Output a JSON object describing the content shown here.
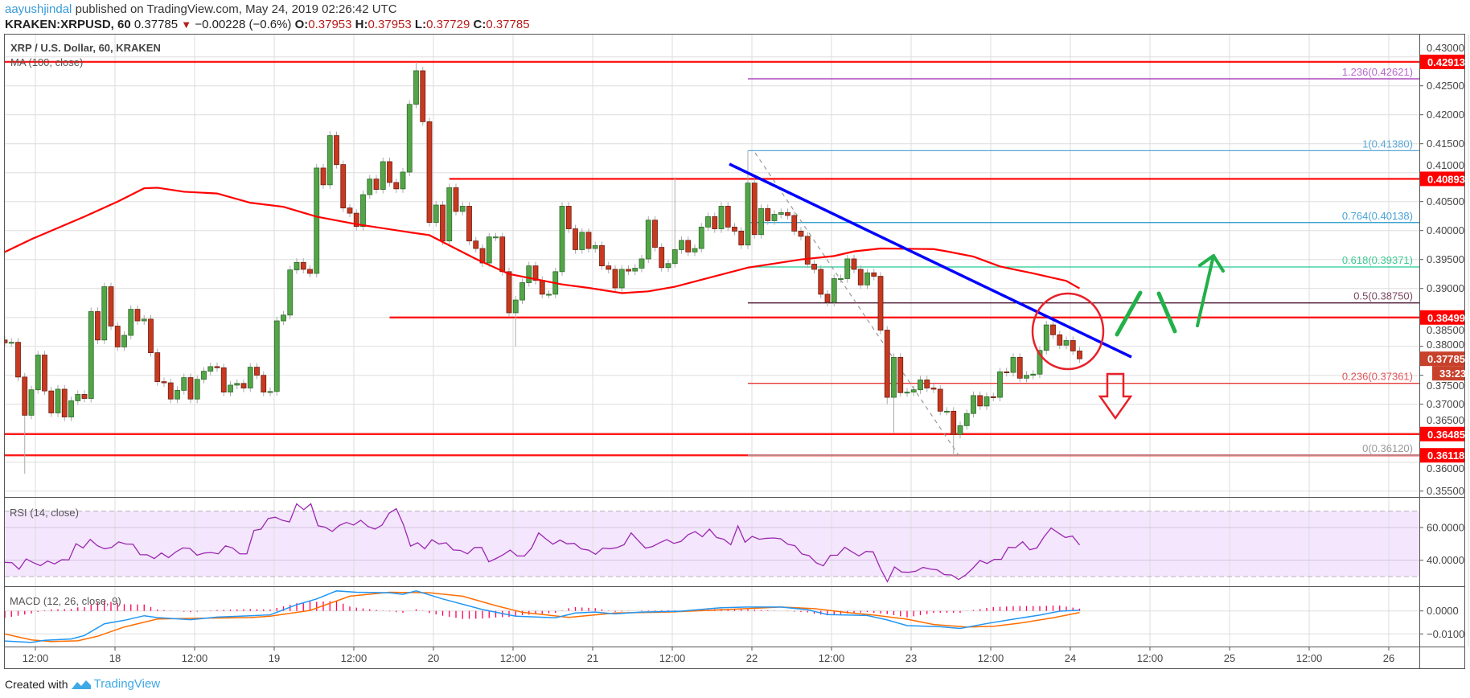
{
  "header": {
    "author": "aayushjindal",
    "published": " published on TradingView.com, May 24, 2019 02:26:42 UTC",
    "symbol": "KRAKEN:XRPUSD, 60",
    "last": "0.37785",
    "change": "−0.00228 (−0.6%)",
    "o_label": "O:",
    "o": "0.37953",
    "h_label": "H:",
    "h": "0.37953",
    "l_label": "L:",
    "l": "0.37729",
    "c_label": "C:",
    "c": "0.37785",
    "direction_icon": "triangle-down-icon"
  },
  "legend": {
    "title": "XRP / U.S. Dollar, 60, KRAKEN",
    "ma": "MA (100, close)",
    "rsi": "RSI (14, close)",
    "macd": "MACD (12, 26, close, 9)"
  },
  "footer": {
    "created_with": "Created with",
    "brand": "TradingView"
  },
  "colors": {
    "up": "#53a548",
    "down": "#c8391f",
    "ma": "#ff0000",
    "level": "#ff0000",
    "trendline": "#0000ff",
    "rsi": "#9c27b0",
    "rsi_band": "#f3e6fd",
    "macd": "#2196f3",
    "signal": "#ff6d00",
    "histogram": "#ff0055",
    "current_tag": "#c8412b"
  },
  "axis": {
    "price_ticks": [
      "0.35500",
      "0.36000",
      "0.36500",
      "0.37000",
      "0.37500",
      "0.38000",
      "0.38500",
      "0.39000",
      "0.39500",
      "0.40000",
      "0.40500",
      "0.41000",
      "0.41500",
      "0.42000",
      "0.42500",
      "0.43000"
    ],
    "rsi_ticks": [
      "40.0000",
      "60.0000"
    ],
    "macd_ticks": [
      "0.0000",
      "−0.0100"
    ],
    "time_labels": [
      "12:00",
      "18",
      "12:00",
      "19",
      "12:00",
      "20",
      "12:00",
      "21",
      "12:00",
      "22",
      "12:00",
      "23",
      "12:00",
      "24",
      "12:00",
      "25",
      "12:00",
      "26"
    ],
    "current_price": "0.37785",
    "countdown": "33:23"
  },
  "levels": [
    {
      "price": 0.42913,
      "label": "0.42913",
      "from": "start"
    },
    {
      "price": 0.40893,
      "label": "0.40893",
      "from": "2019-05-20 03:00"
    },
    {
      "price": 0.38499,
      "label": "0.38499",
      "from": "2019-05-19 18:00"
    },
    {
      "price": 0.36485,
      "label": "0.36485",
      "from": "start"
    },
    {
      "price": 0.36118,
      "label": "0.36118",
      "from": "start"
    }
  ],
  "fib": {
    "from": "2019-05-22 00:00",
    "levels": [
      {
        "label": "1.236(0.42621)",
        "price": 0.42621,
        "color": "#9c27b0",
        "text_color": "#b865d0"
      },
      {
        "label": "1(0.41380)",
        "price": 0.4138,
        "color": "#5aa7d8",
        "text_color": "#5aa7d8"
      },
      {
        "label": "0.764(0.40138)",
        "price": 0.40138,
        "color": "#2196c8",
        "text_color": "#4aa3d8"
      },
      {
        "label": "0.618(0.39371)",
        "price": 0.39371,
        "color": "#20c997",
        "text_color": "#3cc98f"
      },
      {
        "label": "0.5(0.38750)",
        "price": 0.3875,
        "color": "#4a1530",
        "text_color": "#7a4a60"
      },
      {
        "label": "0.236(0.37361)",
        "price": 0.37361,
        "color": "#e53935",
        "text_color": "#e0555a"
      },
      {
        "label": "0(0.36120)",
        "price": 0.3612,
        "color": "#aaaaaa",
        "text_color": "#999999"
      }
    ]
  },
  "chart_data": {
    "type": "candlestick",
    "interval": "60",
    "price_range": [
      0.352,
      0.4326
    ],
    "grid": true,
    "days": [
      {
        "date": "2019-05-17",
        "first_hour": "08:00",
        "open": 0.3811,
        "closes": [
          0.3806,
          0.3807,
          0.3747,
          0.3681,
          0.3725,
          0.3785,
          0.3723,
          0.3685,
          0.3726,
          0.3678,
          0.3706,
          0.3717,
          0.371,
          0.386,
          0.3811,
          0.3903
        ]
      },
      {
        "date": "2019-05-18",
        "first_hour": "00:00",
        "closes": [
          0.3835,
          0.3799,
          0.3819,
          0.3864,
          0.3844,
          0.3847,
          0.3789,
          0.3739,
          0.3737,
          0.3709,
          0.3724,
          0.3746,
          0.3709,
          0.3743,
          0.3757,
          0.3765,
          0.3763,
          0.3721,
          0.3733,
          0.3736,
          0.3728,
          0.3764,
          0.375,
          0.3721
        ]
      },
      {
        "date": "2019-05-19",
        "first_hour": "00:00",
        "closes": [
          0.3722,
          0.3844,
          0.3854,
          0.3932,
          0.3945,
          0.3933,
          0.3926,
          0.4108,
          0.4079,
          0.4164,
          0.4114,
          0.4039,
          0.403,
          0.4007,
          0.4062,
          0.4089,
          0.4071,
          0.4119,
          0.4083,
          0.4072,
          0.4101,
          0.4218,
          0.4276,
          0.4188
        ]
      },
      {
        "date": "2019-05-20",
        "first_hour": "00:00",
        "closes": [
          0.4014,
          0.4044,
          0.3982,
          0.4074,
          0.4033,
          0.4042,
          0.3982,
          0.3969,
          0.3944,
          0.3989,
          0.3989,
          0.3929,
          0.3858,
          0.388,
          0.391,
          0.3939,
          0.3914,
          0.389,
          0.389,
          0.3929,
          0.4042,
          0.4003,
          0.3967,
          0.3997
        ]
      },
      {
        "date": "2019-05-21",
        "first_hour": "00:00",
        "closes": [
          0.3969,
          0.3974,
          0.3939,
          0.3933,
          0.3901,
          0.3933,
          0.393,
          0.3935,
          0.3951,
          0.4018,
          0.3971,
          0.3936,
          0.3943,
          0.3967,
          0.3983,
          0.3963,
          0.3969,
          0.4006,
          0.4024,
          0.4003,
          0.4042,
          0.4006,
          0.3999,
          0.3975
        ]
      },
      {
        "date": "2019-05-22",
        "first_hour": "00:00",
        "closes": [
          0.4082,
          0.3993,
          0.4038,
          0.4017,
          0.4028,
          0.4031,
          0.4026,
          0.3999,
          0.399,
          0.3942,
          0.3933,
          0.389,
          0.3876,
          0.3917,
          0.3917,
          0.3951,
          0.3933,
          0.3906,
          0.3927,
          0.3921,
          0.3828,
          0.3712,
          0.3781,
          0.372
        ]
      },
      {
        "date": "2019-05-23",
        "first_hour": "00:00",
        "closes": [
          0.3721,
          0.3725,
          0.3742,
          0.3728,
          0.3726,
          0.3688,
          0.3688,
          0.3648,
          0.3663,
          0.3684,
          0.3715,
          0.3697,
          0.3713,
          0.3712,
          0.3756,
          0.3755,
          0.3781,
          0.3745,
          0.375,
          0.3752,
          0.3793,
          0.3837,
          0.382,
          0.3802
        ]
      },
      {
        "date": "2019-05-24",
        "first_hour": "00:00",
        "closes": [
          0.381,
          0.3792,
          0.37785
        ]
      }
    ],
    "notable_wicks": [
      {
        "time": "2019-05-17 11:00",
        "low": 0.358
      },
      {
        "time": "2019-05-19 09:00",
        "high": 0.4172
      },
      {
        "time": "2019-05-19 22:00",
        "high": 0.4291
      },
      {
        "time": "2019-05-20 13:00",
        "low": 0.38
      },
      {
        "time": "2019-05-21 13:00",
        "high": 0.4092
      },
      {
        "time": "2019-05-22 00:00",
        "high": 0.4138
      },
      {
        "time": "2019-05-22 21:00",
        "low": 0.37
      },
      {
        "time": "2019-05-22 22:00",
        "low": 0.3651
      },
      {
        "time": "2019-05-23 07:00",
        "low": 0.3612
      }
    ],
    "ma100": [
      [
        "2019-05-17 08:00",
        0.3963
      ],
      [
        "2019-05-17 12:00",
        0.3985
      ],
      [
        "2019-05-17 20:00",
        0.4024
      ],
      [
        "2019-05-18 01:00",
        0.405
      ],
      [
        "2019-05-18 05:00",
        0.4073
      ],
      [
        "2019-05-18 07:00",
        0.4074
      ],
      [
        "2019-05-18 11:00",
        0.4067
      ],
      [
        "2019-05-18 16:00",
        0.4064
      ],
      [
        "2019-05-18 21:00",
        0.4048
      ],
      [
        "2019-05-19 02:00",
        0.4041
      ],
      [
        "2019-05-19 07:00",
        0.4024
      ],
      [
        "2019-05-19 13:00",
        0.4011
      ],
      [
        "2019-05-19 21:00",
        0.3997
      ],
      [
        "2019-05-20 00:00",
        0.3992
      ],
      [
        "2019-05-20 07:00",
        0.3951
      ],
      [
        "2019-05-20 12:00",
        0.3925
      ],
      [
        "2019-05-20 20:00",
        0.3907
      ],
      [
        "2019-05-21 00:00",
        0.3901
      ],
      [
        "2019-05-21 05:00",
        0.3892
      ],
      [
        "2019-05-21 09:00",
        0.3895
      ],
      [
        "2019-05-21 13:00",
        0.3903
      ],
      [
        "2019-05-21 19:00",
        0.3921
      ],
      [
        "2019-05-22 00:00",
        0.3936
      ],
      [
        "2019-05-22 08:00",
        0.395
      ],
      [
        "2019-05-22 13:00",
        0.3956
      ],
      [
        "2019-05-22 16:00",
        0.3964
      ],
      [
        "2019-05-22 20:00",
        0.3969
      ],
      [
        "2019-05-23 04:00",
        0.3968
      ],
      [
        "2019-05-23 06:00",
        0.3964
      ],
      [
        "2019-05-23 10:00",
        0.3955
      ],
      [
        "2019-05-23 14:00",
        0.3938
      ],
      [
        "2019-05-23 19:00",
        0.3926
      ],
      [
        "2019-05-24 00:00",
        0.3913
      ],
      [
        "2019-05-24 02:00",
        0.39
      ]
    ],
    "rsi": {
      "upper": 70,
      "lower": 30,
      "range": [
        22,
        80
      ],
      "values": [
        38.7,
        38.5,
        34.5,
        40.8,
        38.5,
        36.7,
        39.5,
        37.7,
        40.3,
        40.2,
        50.1,
        47.5,
        52.7,
        48.9,
        47.0,
        47.8,
        51.2,
        49.9,
        49.8,
        43.4,
        43.3,
        41.0,
        44.4,
        41.6,
        45.0,
        47.5,
        47.2,
        43.1,
        44.4,
        44.7,
        43.9,
        48.8,
        47.5,
        43.9,
        43.9,
        58.2,
        59.0,
        65.5,
        66.3,
        64.4,
        63.4,
        74.5,
        70.9,
        74.5,
        61.1,
        60.2,
        57.6,
        61.3,
        63.1,
        61.5,
        64.4,
        60.7,
        59.0,
        61.5,
        68.8,
        71.5,
        61.8,
        48.6,
        50.7,
        47.0,
        52.5,
        49.9,
        50.7,
        46.3,
        46.0,
        43.9,
        47.8,
        47.8,
        39.0,
        41.0,
        43.3,
        46.2,
        42.6,
        42.6,
        47.4,
        56.7,
        53.1,
        49.8,
        52.3,
        50.0,
        50.3,
        46.9,
        46.2,
        43.6,
        47.4,
        47.0,
        47.7,
        49.5,
        56.7,
        52.0,
        47.4,
        48.4,
        50.7,
        52.6,
        50.3,
        51.5,
        55.6,
        57.5,
        54.4,
        59.0,
        53.9,
        52.8,
        49.5,
        61.0,
        51.0,
        54.6,
        52.8,
        53.4,
        53.6,
        53.1,
        49.8,
        48.9,
        43.8,
        42.8,
        38.4,
        36.6,
        43.0,
        43.1,
        47.9,
        45.2,
        42.6,
        45.4,
        45.1,
        35.1,
        26.9,
        35.9,
        32.8,
        32.6,
        33.3,
        35.6,
        34.6,
        34.1,
        31.2,
        31.0,
        28.2,
        31.0,
        35.1,
        39.8,
        38.0,
        40.5,
        40.5,
        47.9,
        47.7,
        51.3,
        46.4,
        47.5,
        54.3,
        59.7,
        56.7,
        53.9,
        54.8,
        49.3
      ]
    },
    "macd": {
      "range": [
        -0.0165,
        0.0115
      ],
      "macd": [
        [
          "2019-05-17 08:00",
          -0.0131
        ],
        [
          "2019-05-17 12:00",
          -0.0137
        ],
        [
          "2019-05-17 14:00",
          -0.0128
        ],
        [
          "2019-05-17 18:00",
          -0.0122
        ],
        [
          "2019-05-17 20:00",
          -0.0107
        ],
        [
          "2019-05-17 23:00",
          -0.0056
        ],
        [
          "2019-05-18 02:00",
          -0.0041
        ],
        [
          "2019-05-18 05:00",
          -0.0021
        ],
        [
          "2019-05-18 07:00",
          -0.0029
        ],
        [
          "2019-05-18 12:00",
          -0.0038
        ],
        [
          "2019-05-18 16:00",
          -0.0027
        ],
        [
          "2019-05-18 21:00",
          -0.0021
        ],
        [
          "2019-05-19 00:00",
          -0.0017
        ],
        [
          "2019-05-19 04:00",
          0.0027
        ],
        [
          "2019-05-19 07:00",
          0.0052
        ],
        [
          "2019-05-19 10:00",
          0.0087
        ],
        [
          "2019-05-19 13:00",
          0.0081
        ],
        [
          "2019-05-19 18:00",
          0.0079
        ],
        [
          "2019-05-19 20:00",
          0.0072
        ],
        [
          "2019-05-19 22:00",
          0.0087
        ],
        [
          "2019-05-20 02:00",
          0.0052
        ],
        [
          "2019-05-20 08:00",
          0.0006
        ],
        [
          "2019-05-20 13:00",
          -0.0023
        ],
        [
          "2019-05-20 19:00",
          -0.003
        ],
        [
          "2019-05-20 22:00",
          -0.0009
        ],
        [
          "2019-05-21 01:00",
          -0.0005
        ],
        [
          "2019-05-21 04:00",
          -0.0013
        ],
        [
          "2019-05-21 08:00",
          -0.0005
        ],
        [
          "2019-05-21 14:00",
          -0.0001
        ],
        [
          "2019-05-21 20:00",
          0.0014
        ],
        [
          "2019-05-22 00:00",
          0.0017
        ],
        [
          "2019-05-22 05:00",
          0.0017
        ],
        [
          "2019-05-22 09:00",
          0.0005
        ],
        [
          "2019-05-22 12:00",
          -0.0016
        ],
        [
          "2019-05-22 18:00",
          -0.002
        ],
        [
          "2019-05-22 21:00",
          -0.0039
        ],
        [
          "2019-05-23 00:00",
          -0.0064
        ],
        [
          "2019-05-23 05:00",
          -0.0069
        ],
        [
          "2019-05-23 08:00",
          -0.0076
        ],
        [
          "2019-05-23 12:00",
          -0.0055
        ],
        [
          "2019-05-23 16:00",
          -0.0036
        ],
        [
          "2019-05-23 20:00",
          -0.0018
        ],
        [
          "2019-05-23 23:00",
          -0.0001
        ],
        [
          "2019-05-24 02:00",
          0.0003
        ]
      ],
      "signal": [
        [
          "2019-05-17 08:00",
          -0.01
        ],
        [
          "2019-05-17 12:00",
          -0.0126
        ],
        [
          "2019-05-17 15:00",
          -0.0133
        ],
        [
          "2019-05-17 19:00",
          -0.013
        ],
        [
          "2019-05-17 22:00",
          -0.011
        ],
        [
          "2019-05-18 02:00",
          -0.007
        ],
        [
          "2019-05-18 07:00",
          -0.0035
        ],
        [
          "2019-05-18 11:00",
          -0.0033
        ],
        [
          "2019-05-18 21:00",
          -0.0029
        ],
        [
          "2019-05-19 00:00",
          -0.0023
        ],
        [
          "2019-05-19 06:00",
          0.0002
        ],
        [
          "2019-05-19 12:00",
          0.0064
        ],
        [
          "2019-05-19 18:00",
          0.0081
        ],
        [
          "2019-05-20 00:00",
          0.0079
        ],
        [
          "2019-05-20 05:00",
          0.0064
        ],
        [
          "2019-05-20 10:00",
          0.0023
        ],
        [
          "2019-05-20 14:00",
          -0.0006
        ],
        [
          "2019-05-20 21:00",
          -0.0028
        ],
        [
          "2019-05-21 04:00",
          -0.0009
        ],
        [
          "2019-05-21 12:00",
          -0.0005
        ],
        [
          "2019-05-21 20:00",
          0.0005
        ],
        [
          "2019-05-22 05:00",
          0.0017
        ],
        [
          "2019-05-22 10:00",
          0.001
        ],
        [
          "2019-05-22 15:00",
          -0.0007
        ],
        [
          "2019-05-22 19:00",
          -0.0018
        ],
        [
          "2019-05-23 00:00",
          -0.0036
        ],
        [
          "2019-05-23 04:00",
          -0.0059
        ],
        [
          "2019-05-23 09:00",
          -0.007
        ],
        [
          "2019-05-23 13:00",
          -0.0067
        ],
        [
          "2019-05-23 17:00",
          -0.0053
        ],
        [
          "2019-05-23 22:00",
          -0.003
        ],
        [
          "2019-05-24 02:00",
          -0.0007
        ]
      ]
    }
  }
}
